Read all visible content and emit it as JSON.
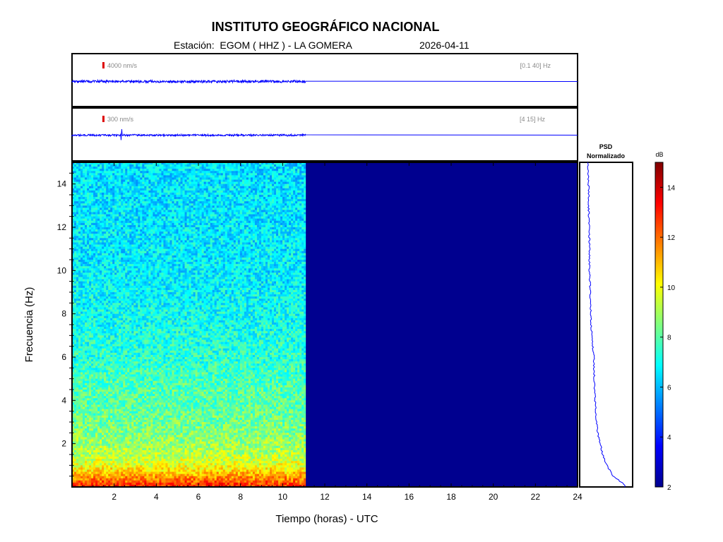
{
  "header": {
    "title": "INSTITUTO GEOGRÁFICO NACIONAL",
    "station_line": "Estación:  EGOM ( HHZ ) - LA GOMERA",
    "date": "2026-04-11"
  },
  "traces": [
    {
      "scale": "4000 nm/s",
      "band": "[0.1 40] Hz",
      "data_end_hour": 11.1
    },
    {
      "scale": "300 nm/s",
      "band": "[4 15] Hz",
      "data_end_hour": 11.1
    }
  ],
  "psd": {
    "title_line1": "PSD",
    "title_line2": "Normalizado"
  },
  "colorbar": {
    "unit": "dB",
    "ticks": [
      "2",
      "4",
      "6",
      "8",
      "10",
      "12",
      "14"
    ],
    "range": [
      2,
      15
    ],
    "colormap": "jet"
  },
  "colors": {
    "trace": "#0000ff",
    "scale_marker": "#dd0000",
    "no_data": "#00008f"
  },
  "chart_data": {
    "type": "heatmap",
    "title": "INSTITUTO GEOGRÁFICO NACIONAL",
    "xlabel": "Tiempo (horas) - UTC",
    "ylabel": "Frecuencia  (Hz)",
    "xlim": [
      0,
      24
    ],
    "ylim": [
      0,
      15
    ],
    "x_ticks": [
      "2",
      "4",
      "6",
      "8",
      "10",
      "12",
      "14",
      "16",
      "18",
      "20",
      "22",
      "24"
    ],
    "y_ticks": [
      "2",
      "4",
      "6",
      "8",
      "10",
      "12",
      "14"
    ],
    "data_end_hour": 11.1,
    "psd_profile": {
      "frequency_hz": [
        0.1,
        0.5,
        1,
        1.5,
        2,
        2.5,
        3,
        3.5,
        4,
        4.5,
        5,
        6,
        7,
        8,
        9,
        10,
        11,
        12,
        13,
        14,
        15
      ],
      "normalized": [
        0.85,
        0.6,
        0.45,
        0.36,
        0.3,
        0.25,
        0.22,
        0.2,
        0.19,
        0.18,
        0.17,
        0.16,
        0.11,
        0.09,
        0.08,
        0.06,
        0.06,
        0.06,
        0.04,
        0.04,
        0.03
      ]
    },
    "spectrogram_profile": {
      "frequency_hz": [
        0,
        0.3,
        0.6,
        1,
        1.5,
        2,
        3,
        4,
        5,
        6,
        8,
        10,
        12,
        15
      ],
      "db": [
        13,
        12,
        11,
        9.8,
        9.2,
        8.8,
        8.3,
        8.0,
        7.8,
        7.4,
        7.0,
        6.7,
        6.6,
        6.5
      ]
    }
  }
}
